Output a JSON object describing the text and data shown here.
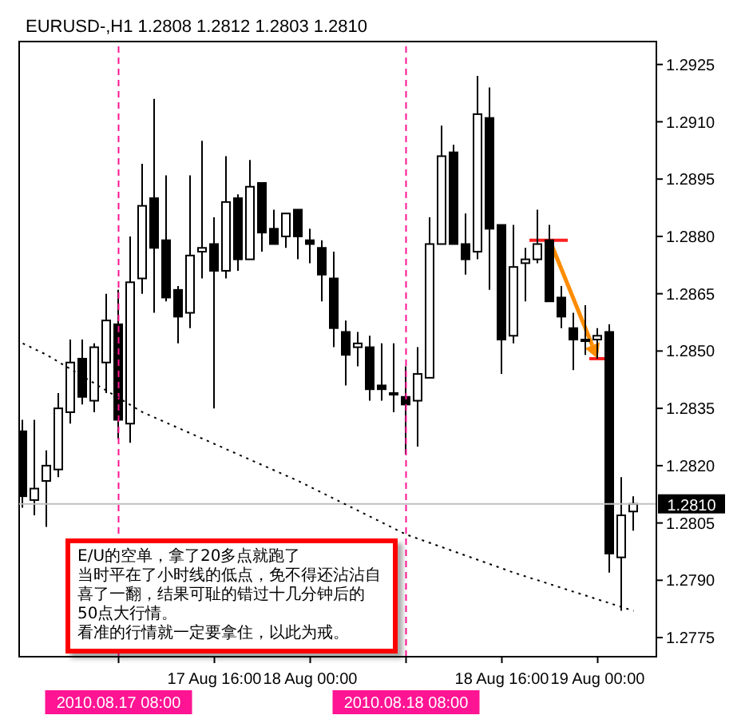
{
  "chart_data": {
    "type": "candlestick",
    "title": "EURUSD-,H1  1.2808 1.2812 1.2803 1.2810",
    "color": "#000000",
    "categories": [
      null,
      null,
      null,
      null,
      null,
      null,
      null,
      null,
      "2010.08.17 08:00",
      null,
      null,
      null,
      null,
      null,
      null,
      null,
      "17 Aug 16:00",
      null,
      null,
      null,
      null,
      null,
      null,
      null,
      "18 Aug 00:00",
      null,
      null,
      null,
      null,
      null,
      null,
      null,
      "2010.08.18 08:00",
      null,
      null,
      null,
      null,
      null,
      null,
      null,
      "18 Aug 16:00",
      null,
      null,
      null,
      null,
      null,
      null,
      null,
      "19 Aug 00:00",
      null,
      null,
      null
    ],
    "ohlc": [
      [
        1.2829,
        1.2832,
        1.2809,
        1.2812
      ],
      [
        1.2811,
        1.2832,
        1.2807,
        1.2814
      ],
      [
        1.2816,
        1.2824,
        1.2804,
        1.282
      ],
      [
        1.2819,
        1.2839,
        1.2817,
        1.2835
      ],
      [
        1.2834,
        1.2853,
        1.2831,
        1.2847
      ],
      [
        1.2848,
        1.2853,
        1.2836,
        1.2838
      ],
      [
        1.2837,
        1.2852,
        1.2834,
        1.2851
      ],
      [
        1.2847,
        1.2865,
        1.2839,
        1.2858
      ],
      [
        1.2857,
        1.2866,
        1.2827,
        1.2832
      ],
      [
        1.2831,
        1.288,
        1.2826,
        1.2868
      ],
      [
        1.2869,
        1.2899,
        1.2865,
        1.2888
      ],
      [
        1.289,
        1.2916,
        1.286,
        1.2877
      ],
      [
        1.2879,
        1.2896,
        1.2863,
        1.2864
      ],
      [
        1.2866,
        1.2867,
        1.2852,
        1.2859
      ],
      [
        1.286,
        1.2896,
        1.2856,
        1.2875
      ],
      [
        1.2876,
        1.2905,
        1.2869,
        1.2877
      ],
      [
        1.2878,
        1.2885,
        1.2835,
        1.2871
      ],
      [
        1.2871,
        1.2901,
        1.2869,
        1.2889
      ],
      [
        1.289,
        1.2891,
        1.2871,
        1.2874
      ],
      [
        1.2874,
        1.29,
        1.2874,
        1.2893
      ],
      [
        1.2894,
        1.2894,
        1.2876,
        1.2881
      ],
      [
        1.2882,
        1.2887,
        1.2878,
        1.2878
      ],
      [
        1.288,
        1.2886,
        1.2877,
        1.2886
      ],
      [
        1.2887,
        1.2887,
        1.2874,
        1.288
      ],
      [
        1.2879,
        1.2882,
        1.2873,
        1.2878
      ],
      [
        1.2877,
        1.2879,
        1.2863,
        1.287
      ],
      [
        1.2869,
        1.2876,
        1.2851,
        1.2856
      ],
      [
        1.2855,
        1.2858,
        1.2841,
        1.2849
      ],
      [
        1.2851,
        1.2855,
        1.2846,
        1.2852
      ],
      [
        1.2851,
        1.2854,
        1.2837,
        1.284
      ],
      [
        1.2841,
        1.2852,
        1.2837,
        1.284
      ],
      [
        1.2839,
        1.2852,
        1.2834,
        1.2839
      ],
      [
        1.2838,
        1.2846,
        1.2823,
        1.2836
      ],
      [
        1.2837,
        1.2851,
        1.2825,
        1.2844
      ],
      [
        1.2843,
        1.2885,
        1.2843,
        1.2878
      ],
      [
        1.2878,
        1.2909,
        1.2878,
        1.2901
      ],
      [
        1.2902,
        1.2904,
        1.2878,
        1.2878
      ],
      [
        1.2878,
        1.2886,
        1.287,
        1.2874
      ],
      [
        1.2876,
        1.2922,
        1.2874,
        1.2912
      ],
      [
        1.2911,
        1.2919,
        1.2866,
        1.2882
      ],
      [
        1.2883,
        1.2883,
        1.2844,
        1.2853
      ],
      [
        1.2854,
        1.2883,
        1.2852,
        1.2872
      ],
      [
        1.2873,
        1.2877,
        1.2863,
        1.2874
      ],
      [
        1.2874,
        1.2887,
        1.2873,
        1.2878
      ],
      [
        1.2879,
        1.2883,
        1.2863,
        1.2863
      ],
      [
        1.2864,
        1.2867,
        1.2856,
        1.2859
      ],
      [
        1.2856,
        1.286,
        1.2845,
        1.2853
      ],
      [
        1.2853,
        1.2862,
        1.2849,
        1.2853
      ],
      [
        1.2853,
        1.2856,
        1.2848,
        1.2854
      ],
      [
        1.2855,
        1.2857,
        1.2792,
        1.2797
      ],
      [
        1.2796,
        1.2817,
        1.2782,
        1.2807
      ],
      [
        1.2808,
        1.2812,
        1.2803,
        1.281
      ]
    ],
    "series": [
      {
        "type": "line",
        "color": "#000000",
        "line_style": "dotted",
        "values": [
          1.2852,
          null,
          1.2849,
          null,
          null,
          null,
          null,
          null,
          null,
          null,
          1.2834,
          null,
          null,
          null,
          null,
          null,
          null,
          null,
          null,
          null,
          null,
          null,
          null,
          1.2816,
          null,
          null,
          null,
          null,
          null,
          null,
          null,
          null,
          1.2802,
          null,
          null,
          null,
          null,
          null,
          null,
          null,
          null,
          1.2792,
          null,
          null,
          null,
          null,
          1.2787,
          null,
          null,
          null,
          null,
          1.2782
        ]
      }
    ],
    "ylim": [
      1.277,
      1.2931
    ],
    "yticks": [
      1.2775,
      {
        "value": 1.279,
        "label": "1.2790"
      },
      1.2805,
      {
        "value": 1.282,
        "label": "1.2820"
      },
      1.2835,
      {
        "value": 1.285,
        "label": "1.2850"
      },
      1.2865,
      {
        "value": 1.288,
        "label": "1.2880"
      },
      1.2895,
      {
        "value": 1.291,
        "label": "1.2910"
      },
      1.2925
    ],
    "ref_lines": [
      {
        "axis": "x",
        "value": "2010.08.17 08:00",
        "color": "#ff1493",
        "line_style": "dashed"
      },
      {
        "axis": "x",
        "value": "2010.08.18 08:00",
        "color": "#ff1493",
        "line_style": "dashed"
      },
      {
        "axis": "y",
        "value": 1.281,
        "label": "1.2810",
        "color": "#c0c0c0",
        "line_style": "solid"
      }
    ],
    "annotations": [
      "E/U的空单，拿了20多点就跑了",
      "当时平在了小时线的低点，免不得还沾沾自喜了一翻，结果可耻的错过十几分钟后的50点大行情。",
      "看准的行情就一定要拿住，以此为戒。"
    ]
  }
}
